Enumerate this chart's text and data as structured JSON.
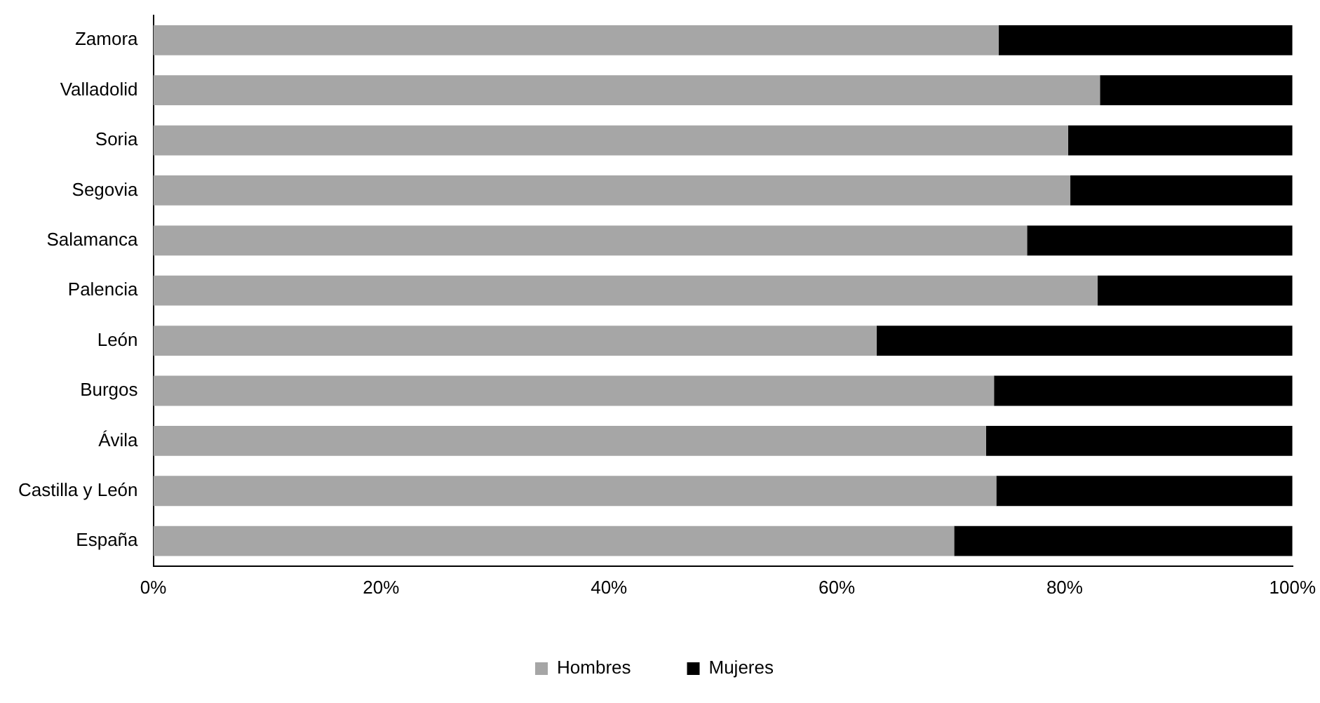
{
  "chart_data": {
    "type": "bar",
    "orientation": "horizontal",
    "stacked": true,
    "categories": [
      "Zamora",
      "Valladolid",
      "Soria",
      "Segovia",
      "Salamanca",
      "Palencia",
      "León",
      "Burgos",
      "Ávila",
      "Castilla y León",
      "España"
    ],
    "series": [
      {
        "name": "Hombres",
        "color": "#a6a6a6",
        "values": [
          74.2,
          83.1,
          80.3,
          80.5,
          76.7,
          82.9,
          63.5,
          73.8,
          73.1,
          74,
          70.3
        ]
      },
      {
        "name": "Mujeres",
        "color": "#000000",
        "values": [
          25.8,
          16.9,
          19.7,
          19.5,
          23.3,
          17.1,
          36.5,
          26.2,
          26.9,
          26,
          29.7
        ]
      }
    ],
    "xlim": [
      0,
      100
    ],
    "xticks": [
      {
        "value": 0,
        "label": "0%"
      },
      {
        "value": 20,
        "label": "20%"
      },
      {
        "value": 40,
        "label": "40%"
      },
      {
        "value": 60,
        "label": "60%"
      },
      {
        "value": 80,
        "label": "80%"
      },
      {
        "value": 100,
        "label": "100%"
      }
    ],
    "grid": false,
    "legend": "bottom"
  }
}
